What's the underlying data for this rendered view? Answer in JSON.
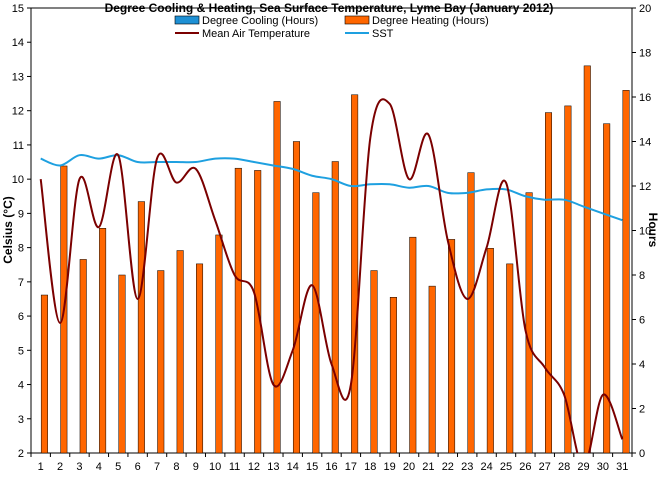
{
  "chart_data": {
    "type": "bar+line",
    "title": "Degree Cooling & Heating, Sea Surface Temperature, Lyme Bay (January 2012)",
    "ylabel_left": "Celsius (°C)",
    "ylabel_right": "Hours",
    "y_left_range": [
      2,
      15
    ],
    "y_right_range": [
      0,
      20
    ],
    "grid": false,
    "legend_position": "top",
    "categories": [
      "1",
      "2",
      "3",
      "4",
      "5",
      "6",
      "7",
      "8",
      "9",
      "10",
      "11",
      "12",
      "13",
      "14",
      "15",
      "16",
      "17",
      "18",
      "19",
      "20",
      "21",
      "22",
      "23",
      "24",
      "25",
      "26",
      "27",
      "28",
      "29",
      "30",
      "31"
    ],
    "series": [
      {
        "name": "Degree Cooling (Hours)",
        "kind": "bar",
        "axis": "right",
        "color": "#1e90d4",
        "values": [
          0,
          0,
          0,
          0,
          0,
          0,
          0,
          0,
          0,
          0,
          0,
          0,
          0,
          0,
          0,
          0,
          0,
          0,
          0,
          0,
          0,
          0,
          0,
          0,
          0,
          0,
          0,
          0,
          0,
          0,
          0
        ]
      },
      {
        "name": "Degree Heating (Hours)",
        "kind": "bar",
        "axis": "right",
        "color": "#ff6600",
        "values": [
          7.1,
          12.9,
          8.7,
          10.1,
          8.0,
          11.3,
          8.2,
          9.1,
          8.5,
          9.8,
          12.8,
          12.7,
          15.8,
          14.0,
          11.7,
          13.1,
          16.1,
          8.2,
          7.0,
          9.7,
          7.5,
          9.6,
          12.6,
          9.2,
          8.5,
          11.7,
          15.3,
          15.6,
          17.4,
          14.8,
          16.3
        ]
      },
      {
        "name": "Mean Air Temperature",
        "kind": "line",
        "axis": "left",
        "color": "#7b0000",
        "values": [
          10.0,
          5.8,
          10.0,
          8.6,
          10.7,
          6.5,
          10.6,
          9.9,
          10.3,
          8.8,
          7.2,
          6.7,
          4.0,
          5.0,
          6.9,
          4.6,
          4.0,
          11.2,
          12.2,
          10.0,
          11.3,
          8.2,
          6.5,
          8.0,
          9.9,
          5.6,
          4.5,
          3.7,
          1.6,
          3.7,
          2.4
        ]
      },
      {
        "name": "SST",
        "kind": "line",
        "axis": "left",
        "color": "#1ea0e0",
        "values": [
          10.6,
          10.4,
          10.7,
          10.6,
          10.7,
          10.5,
          10.5,
          10.5,
          10.5,
          10.6,
          10.6,
          10.5,
          10.4,
          10.3,
          10.1,
          10.0,
          9.8,
          9.85,
          9.85,
          9.75,
          9.8,
          9.6,
          9.6,
          9.7,
          9.7,
          9.5,
          9.4,
          9.4,
          9.2,
          9.0,
          8.8
        ]
      }
    ],
    "y_left_ticks": [
      "2",
      "3",
      "4",
      "5",
      "6",
      "7",
      "8",
      "9",
      "10",
      "11",
      "12",
      "13",
      "14",
      "15"
    ],
    "y_right_ticks": [
      "0",
      "2",
      "4",
      "6",
      "8",
      "10",
      "12",
      "14",
      "16",
      "18",
      "20"
    ]
  }
}
